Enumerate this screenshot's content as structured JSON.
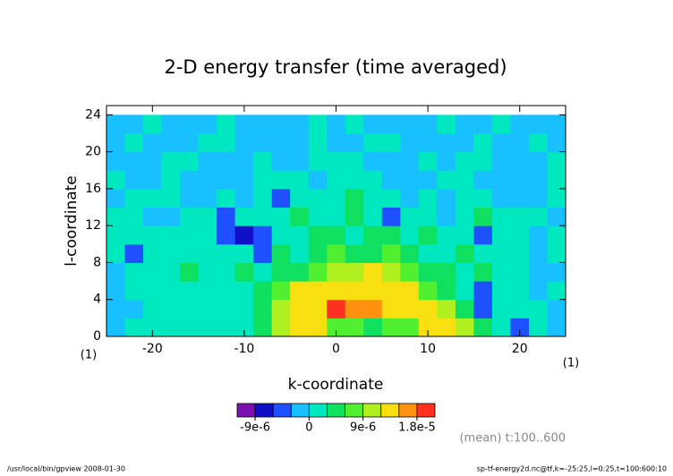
{
  "chart_data": {
    "type": "contour",
    "title": "2-D energy transfer (time averaged)",
    "x_label": "k-coordinate",
    "y_label": "l-coordinate",
    "x_unit_left": "(1)",
    "x_unit_right": "(1)",
    "annotation": "(mean) t:100..600",
    "footer_left": "/usr/local/bin/gpview  2008-01-30",
    "footer_right": "sp-tf-energy2d.nc@tf,k=-25:25,l=0:25,t=100:600:10",
    "xlim": [
      -25,
      25
    ],
    "ylim": [
      0,
      25
    ],
    "xticks": [
      -20,
      -10,
      0,
      10,
      20
    ],
    "yticks": [
      0,
      4,
      8,
      12,
      16,
      20,
      24
    ],
    "x": [
      -24,
      -22,
      -20,
      -18,
      -16,
      -14,
      -12,
      -10,
      -8,
      -6,
      -4,
      -2,
      0,
      2,
      4,
      6,
      8,
      10,
      12,
      14,
      16,
      18,
      20,
      22,
      24
    ],
    "y": [
      1,
      3,
      5,
      7,
      9,
      11,
      13,
      15,
      17,
      19,
      21,
      23
    ],
    "z": [
      [
        -1.5e-06,
        1.5e-06,
        1.5e-06,
        1.5e-06,
        1.5e-06,
        1.5e-06,
        1.5e-06,
        1.5e-06,
        4.5e-06,
        1.05e-05,
        1.35e-05,
        1.35e-05,
        7.5e-06,
        7.5e-06,
        4.5e-06,
        7.5e-06,
        7.5e-06,
        1.35e-05,
        1.35e-05,
        1.05e-05,
        4.5e-06,
        1.5e-06,
        -4.5e-06,
        1.5e-06,
        -1.5e-06
      ],
      [
        -1.5e-06,
        -1.5e-06,
        1.5e-06,
        1.5e-06,
        1.5e-06,
        1.5e-06,
        1.5e-06,
        1.5e-06,
        4.5e-06,
        1.05e-05,
        1.35e-05,
        1.35e-05,
        1.95e-05,
        1.65e-05,
        1.65e-05,
        1.35e-05,
        1.35e-05,
        1.35e-05,
        1.05e-05,
        4.5e-06,
        -4.5e-06,
        1.5e-06,
        1.5e-06,
        1.5e-06,
        -1.5e-06
      ],
      [
        -1.5e-06,
        1.5e-06,
        1.5e-06,
        1.5e-06,
        1.5e-06,
        1.5e-06,
        1.5e-06,
        1.5e-06,
        4.5e-06,
        7.5e-06,
        1.35e-05,
        1.35e-05,
        1.35e-05,
        1.35e-05,
        1.35e-05,
        1.35e-05,
        1.35e-05,
        7.5e-06,
        4.5e-06,
        1.5e-06,
        -4.5e-06,
        1.5e-06,
        1.5e-06,
        -1.5e-06,
        1.5e-06
      ],
      [
        -1.5e-06,
        1.5e-06,
        1.5e-06,
        1.5e-06,
        4.5e-06,
        1.5e-06,
        1.5e-06,
        4.5e-06,
        1.5e-06,
        4.5e-06,
        4.5e-06,
        7.5e-06,
        1.05e-05,
        1.05e-05,
        1.35e-05,
        1.05e-05,
        7.5e-06,
        4.5e-06,
        4.5e-06,
        1.5e-06,
        4.5e-06,
        1.5e-06,
        1.5e-06,
        -1.5e-06,
        -1.5e-06
      ],
      [
        1.5e-06,
        -4.5e-06,
        1.5e-06,
        1.5e-06,
        1.5e-06,
        1.5e-06,
        1.5e-06,
        1.5e-06,
        -4.5e-06,
        4.5e-06,
        1.5e-06,
        4.5e-06,
        7.5e-06,
        4.5e-06,
        4.5e-06,
        7.5e-06,
        4.5e-06,
        1.5e-06,
        1.5e-06,
        4.5e-06,
        1.5e-06,
        1.5e-06,
        1.5e-06,
        -1.5e-06,
        1.5e-06
      ],
      [
        1.5e-06,
        1.5e-06,
        1.5e-06,
        1.5e-06,
        1.5e-06,
        1.5e-06,
        -4.5e-06,
        -7.5e-06,
        -4.5e-06,
        1.5e-06,
        1.5e-06,
        4.5e-06,
        4.5e-06,
        1.5e-06,
        4.5e-06,
        4.5e-06,
        1.5e-06,
        4.5e-06,
        1.5e-06,
        1.5e-06,
        -4.5e-06,
        1.5e-06,
        1.5e-06,
        -1.5e-06,
        1.5e-06
      ],
      [
        1.5e-06,
        1.5e-06,
        -1.5e-06,
        -1.5e-06,
        1.5e-06,
        1.5e-06,
        -4.5e-06,
        1.5e-06,
        1.5e-06,
        1.5e-06,
        4.5e-06,
        1.5e-06,
        1.5e-06,
        4.5e-06,
        1.5e-06,
        -4.5e-06,
        1.5e-06,
        1.5e-06,
        -1.5e-06,
        1.5e-06,
        4.5e-06,
        1.5e-06,
        1.5e-06,
        1.5e-06,
        -1.5e-06
      ],
      [
        -1.5e-06,
        1.5e-06,
        1.5e-06,
        1.5e-06,
        -1.5e-06,
        -1.5e-06,
        1.5e-06,
        -1.5e-06,
        1.5e-06,
        -4.5e-06,
        1.5e-06,
        1.5e-06,
        1.5e-06,
        4.5e-06,
        1.5e-06,
        1.5e-06,
        -1.5e-06,
        1.5e-06,
        -1.5e-06,
        1.5e-06,
        1.5e-06,
        -1.5e-06,
        -1.5e-06,
        -1.5e-06,
        1.5e-06
      ],
      [
        1.5e-06,
        -1.5e-06,
        -1.5e-06,
        1.5e-06,
        -1.5e-06,
        -1.5e-06,
        -1.5e-06,
        -1.5e-06,
        1.5e-06,
        1.5e-06,
        1.5e-06,
        -1.5e-06,
        1.5e-06,
        1.5e-06,
        1.5e-06,
        -1.5e-06,
        -1.5e-06,
        -1.5e-06,
        1.5e-06,
        1.5e-06,
        -1.5e-06,
        -1.5e-06,
        -1.5e-06,
        -1.5e-06,
        1.5e-06
      ],
      [
        -1.5e-06,
        -1.5e-06,
        -1.5e-06,
        1.5e-06,
        1.5e-06,
        -1.5e-06,
        -1.5e-06,
        -1.5e-06,
        1.5e-06,
        -1.5e-06,
        -1.5e-06,
        1.5e-06,
        1.5e-06,
        1.5e-06,
        -1.5e-06,
        -1.5e-06,
        -1.5e-06,
        1.5e-06,
        -1.5e-06,
        1.5e-06,
        1.5e-06,
        -1.5e-06,
        -1.5e-06,
        -1.5e-06,
        1.5e-06
      ],
      [
        -1.5e-06,
        1.5e-06,
        -1.5e-06,
        -1.5e-06,
        -1.5e-06,
        1.5e-06,
        1.5e-06,
        -1.5e-06,
        -1.5e-06,
        -1.5e-06,
        -1.5e-06,
        1.5e-06,
        -1.5e-06,
        -1.5e-06,
        1.5e-06,
        1.5e-06,
        -1.5e-06,
        -1.5e-06,
        -1.5e-06,
        -1.5e-06,
        1.5e-06,
        -1.5e-06,
        -1.5e-06,
        1.5e-06,
        -1.5e-06
      ],
      [
        -1.5e-06,
        -1.5e-06,
        1.5e-06,
        -1.5e-06,
        -1.5e-06,
        -1.5e-06,
        1.5e-06,
        -1.5e-06,
        -1.5e-06,
        -1.5e-06,
        -1.5e-06,
        1.5e-06,
        -1.5e-06,
        1.5e-06,
        -1.5e-06,
        -1.5e-06,
        -1.5e-06,
        -1.5e-06,
        1.5e-06,
        -1.5e-06,
        -1.5e-06,
        1.5e-06,
        -1.5e-06,
        -1.5e-06,
        -1.5e-06
      ]
    ],
    "colorbar": {
      "levels": [
        -1.2e-05,
        -9e-06,
        -6e-06,
        -3e-06,
        0,
        3e-06,
        6e-06,
        9e-06,
        1.2e-05,
        1.5e-05,
        1.8e-05,
        2.1e-05
      ],
      "colors": [
        "#7a10b0",
        "#1010c8",
        "#1e50ff",
        "#18c0ff",
        "#00e8c0",
        "#10e060",
        "#50f030",
        "#b0f020",
        "#f8e010",
        "#ff9010",
        "#ff3020"
      ],
      "ticks": [
        {
          "value": -9e-06,
          "label": "-9e-6"
        },
        0,
        {
          "value": 9e-06,
          "label": "9e-6"
        },
        {
          "value": 1.8e-05,
          "label": "1.8e-5"
        }
      ]
    }
  }
}
